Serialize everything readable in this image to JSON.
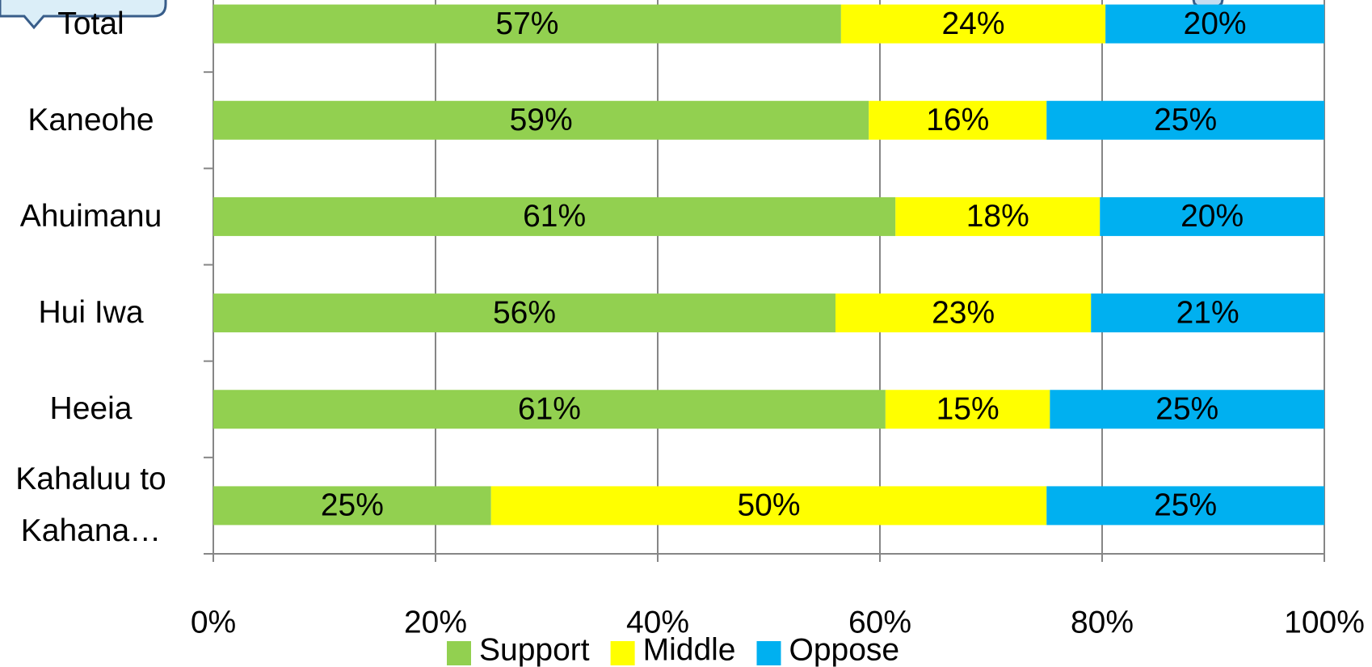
{
  "chart_data": {
    "type": "stacked_bar_horizontal",
    "categories": [
      "Total",
      "Kaneohe",
      "Ahuimanu",
      "Hui Iwa",
      "Heeia",
      "Kahaluu to Kahana…"
    ],
    "series": [
      {
        "name": "Support",
        "color": "#92d050",
        "values": [
          56.5,
          59.0,
          61.4,
          56.0,
          60.5,
          25.0
        ],
        "value_labels": [
          "57%",
          "59%",
          "61%",
          "56%",
          "61%",
          "25%"
        ]
      },
      {
        "name": "Middle",
        "color": "#ffff00",
        "values": [
          23.8,
          16.0,
          18.4,
          23.0,
          14.8,
          50.0
        ],
        "value_labels": [
          "24%",
          "16%",
          "18%",
          "23%",
          "15%",
          "50%"
        ]
      },
      {
        "name": "Oppose",
        "color": "#00b0f0",
        "values": [
          19.7,
          25.0,
          20.2,
          21.0,
          24.7,
          25.0
        ],
        "value_labels": [
          "20%",
          "25%",
          "20%",
          "21%",
          "25%",
          "25%"
        ]
      }
    ],
    "xlim": [
      0,
      100
    ],
    "xticks": [
      {
        "value": 0,
        "label": "0%"
      },
      {
        "value": 20,
        "label": "20%"
      },
      {
        "value": 40,
        "label": "40%"
      },
      {
        "value": 60,
        "label": "60%"
      },
      {
        "value": 80,
        "label": "80%"
      },
      {
        "value": 100,
        "label": "100%"
      }
    ],
    "grid": true,
    "legend": "bottom"
  }
}
